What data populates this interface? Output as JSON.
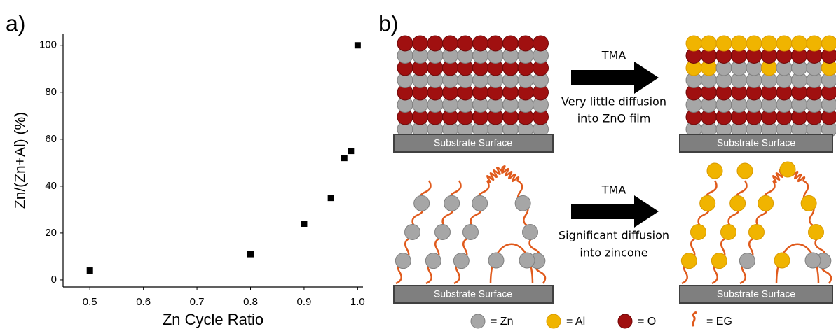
{
  "panel_labels": [
    "a)",
    "b)"
  ],
  "chart_data": {
    "type": "scatter",
    "x_label": "Zn Cycle Ratio",
    "y_label": "Zn/(Zn+Al) (%)",
    "x": [
      0.5,
      0.8,
      0.9,
      0.95,
      0.975,
      0.9875,
      1.0
    ],
    "values": [
      4,
      11,
      24,
      35,
      52,
      55,
      100
    ],
    "color": "#000000",
    "xlim": [
      0.45,
      1.01
    ],
    "ylim": [
      -3,
      105
    ],
    "xticks": [
      0.5,
      0.6,
      0.7,
      0.8,
      0.9,
      {
        "value": 1,
        "label": "1.0"
      }
    ],
    "yticks": [
      0,
      20,
      40,
      60,
      80,
      100
    ],
    "grid": false
  },
  "diagram": {
    "rows": [
      {
        "arrow_label": "TMA",
        "caption_lines": [
          "Very little diffusion",
          "into ZnO film"
        ],
        "substrate_labels": [
          "Substrate Surface",
          "Substrate Surface"
        ]
      },
      {
        "arrow_label": "TMA",
        "caption_lines": [
          "Significant diffusion",
          "into zincone"
        ],
        "substrate_labels": [
          "Substrate Surface",
          "Substrate Surface"
        ]
      }
    ],
    "legend": [
      "= Zn",
      "= Al",
      "= O",
      "= EG"
    ]
  }
}
